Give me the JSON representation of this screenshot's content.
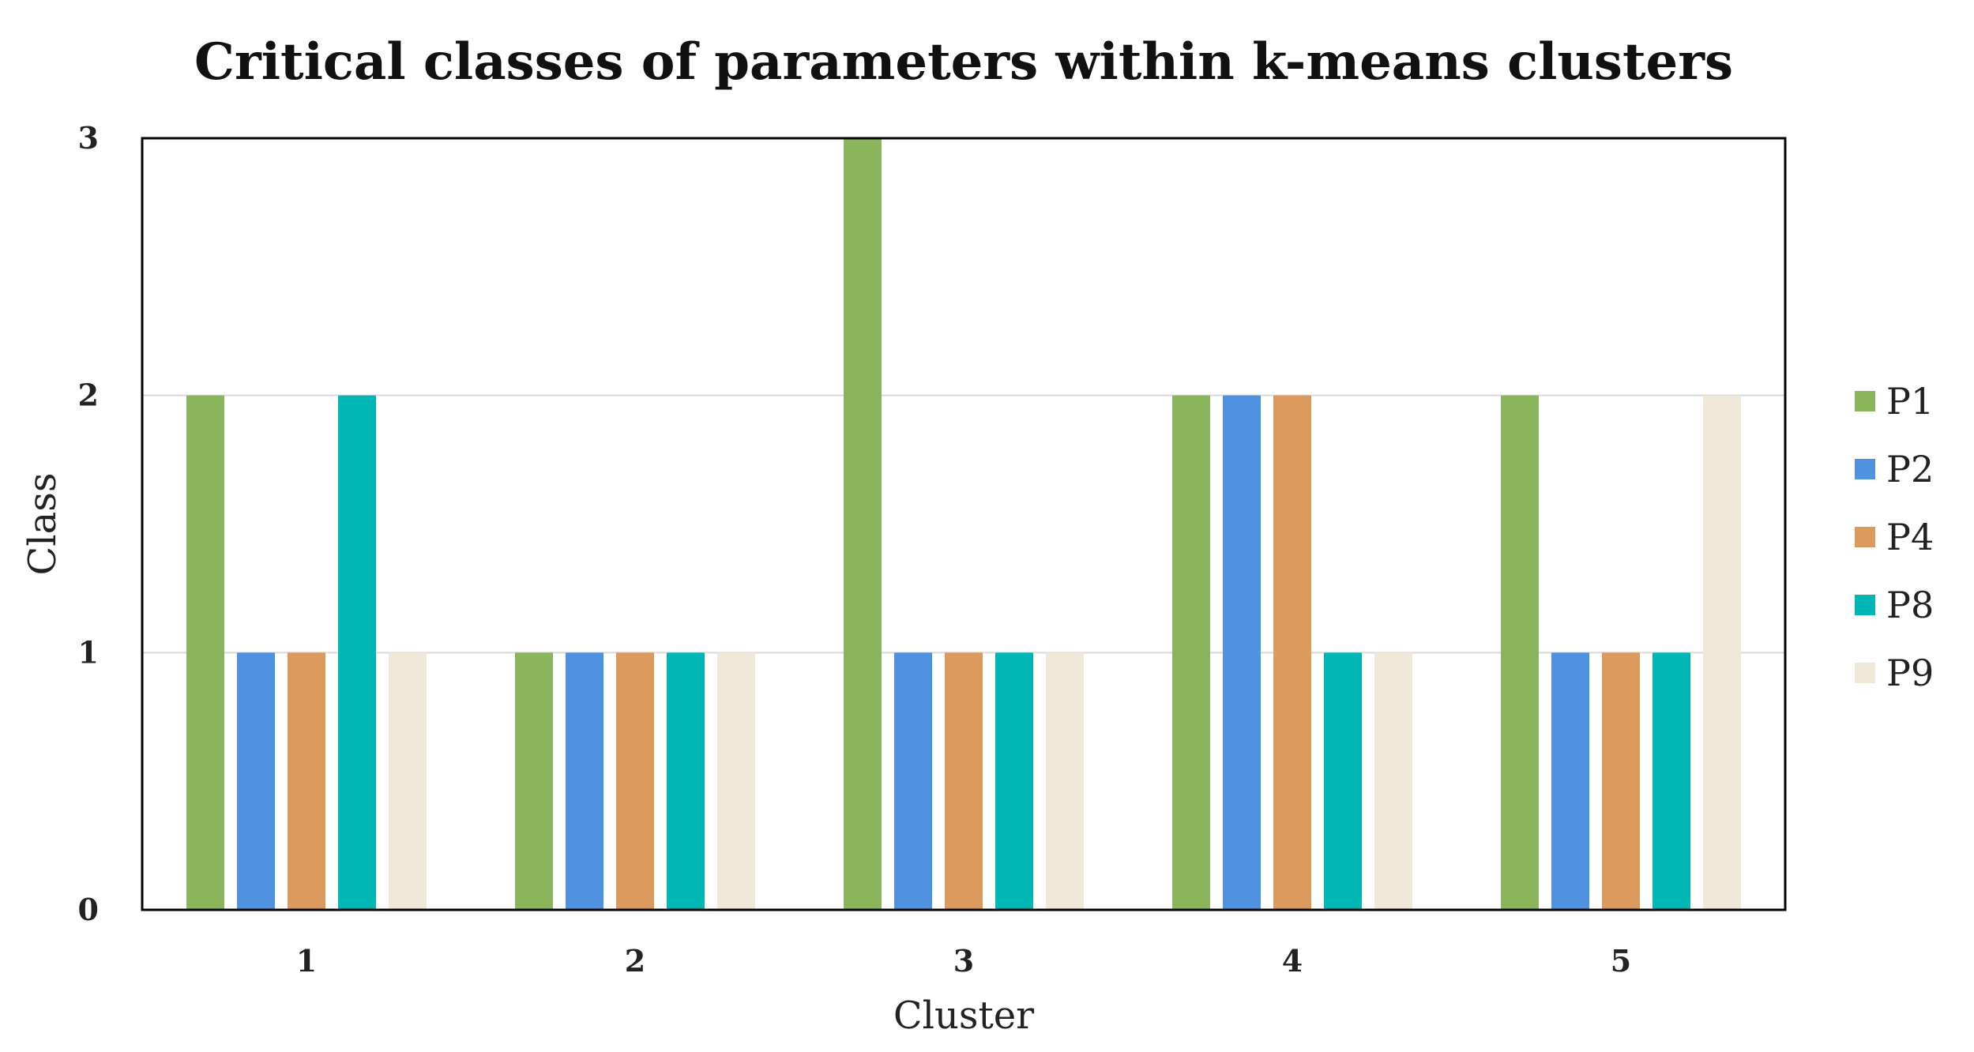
{
  "chart_data": {
    "type": "bar",
    "title": "Critical classes of parameters within k-means clusters",
    "xlabel": "Cluster",
    "ylabel": "Class",
    "categories": [
      "1",
      "2",
      "3",
      "4",
      "5"
    ],
    "ylim": [
      0,
      3
    ],
    "yticks": [
      "0",
      "1",
      "2",
      "3"
    ],
    "grid": true,
    "legend_position": "right",
    "series": [
      {
        "name": "P1",
        "color": "#8ab55b",
        "values": [
          2,
          1,
          3,
          2,
          2
        ]
      },
      {
        "name": "P2",
        "color": "#4f92df",
        "values": [
          1,
          1,
          1,
          2,
          1
        ]
      },
      {
        "name": "P4",
        "color": "#dc9a5c",
        "values": [
          1,
          1,
          1,
          2,
          1
        ]
      },
      {
        "name": "P8",
        "color": "#00b7b5",
        "values": [
          2,
          1,
          1,
          1,
          1
        ]
      },
      {
        "name": "P9",
        "color": "#efe7d7",
        "values": [
          1,
          1,
          1,
          1,
          2
        ]
      }
    ]
  }
}
